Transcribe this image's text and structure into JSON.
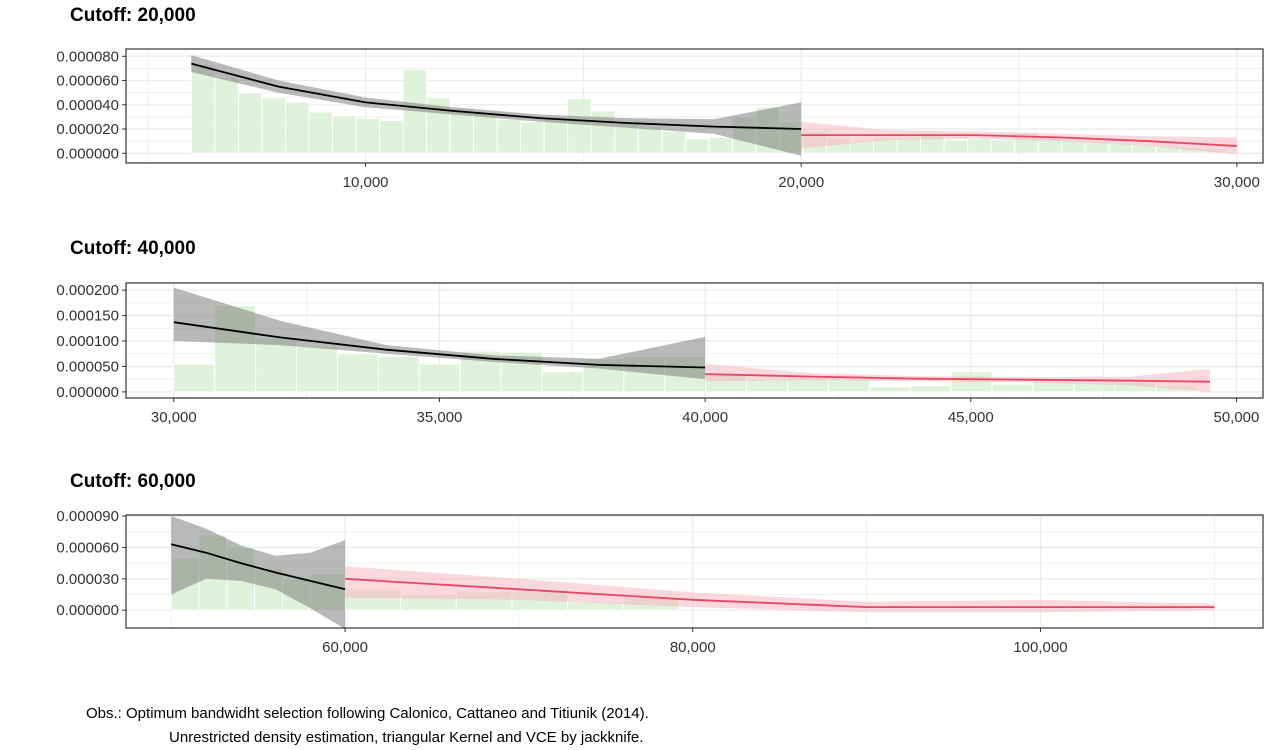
{
  "colors": {
    "hist_fill": "#d9f0d3",
    "left_line": "#000000",
    "left_ci": "#7f7f7f",
    "right_line": "#e8475f",
    "right_ci": "#f7b6c2",
    "grid": "#ebebeb",
    "border": "#333333"
  },
  "notes": {
    "line1": "Obs.: Optimum bandwidht selection following Calonico, Cattaneo and Titiunik (2014).",
    "line2": "Unrestricted density estimation, triangular Kernel and VCE by jackknife."
  },
  "chart_data": [
    {
      "type": "area",
      "title": "Cutoff: 20,000",
      "xlim": [
        4500,
        30600
      ],
      "ylim": [
        -8e-06,
        8.6e-05
      ],
      "x_ticks": [
        10000,
        20000,
        30000
      ],
      "x_tick_labels": [
        "10,000",
        "20,000",
        "30,000"
      ],
      "y_ticks": [
        0,
        2e-05,
        4e-05,
        6e-05,
        8e-05
      ],
      "y_tick_labels": [
        "0.000000",
        "0.000020",
        "0.000040",
        "0.000060",
        "0.000080"
      ],
      "cutoff": 20000,
      "histogram": {
        "edges": [
          6000,
          6540,
          7080,
          7620,
          8160,
          8700,
          9240,
          9780,
          10320,
          10860,
          11400,
          11940,
          12480,
          13020,
          13560,
          14100,
          14640,
          15180,
          15720,
          16260,
          16800,
          17340,
          17880,
          18420,
          18960,
          19500,
          20040,
          20580,
          21120,
          21660,
          22200,
          22740,
          23280,
          23820,
          24360,
          24900,
          25440,
          25980,
          26520,
          27060,
          27600,
          28140,
          28680,
          29220,
          29760
        ],
        "values": [
          7.3e-05,
          6.3e-05,
          5e-05,
          4.6e-05,
          4.2e-05,
          3.4e-05,
          3.1e-05,
          2.9e-05,
          2.7e-05,
          6.9e-05,
          4.6e-05,
          3.7e-05,
          3.4e-05,
          2.8e-05,
          2.6e-05,
          3e-05,
          4.5e-05,
          3.5e-05,
          2.6e-05,
          2.2e-05,
          1.8e-05,
          1.2e-05,
          1.3e-05,
          3e-05,
          3.8e-05,
          2.6e-05,
          1.8e-05,
          1.3e-05,
          1e-05,
          1.3e-05,
          1.3e-05,
          1.7e-05,
          1.1e-05,
          1.2e-05,
          1.1e-05,
          1.7e-05,
          1.2e-05,
          1.1e-05,
          1e-05,
          8e-06,
          7e-06,
          6e-06,
          5e-06,
          4e-06
        ]
      },
      "left": {
        "x": [
          6000,
          8000,
          10000,
          12000,
          14000,
          16000,
          18000,
          20000
        ],
        "y": [
          7.4e-05,
          5.5e-05,
          4.2e-05,
          3.5e-05,
          2.9e-05,
          2.5e-05,
          2.2e-05,
          2e-05
        ],
        "lower": [
          6.7e-05,
          5e-05,
          3.8e-05,
          3.2e-05,
          2.6e-05,
          2.1e-05,
          1.6e-05,
          -2e-06
        ],
        "upper": [
          8.1e-05,
          6e-05,
          4.6e-05,
          3.8e-05,
          3.2e-05,
          2.9e-05,
          2.8e-05,
          4.2e-05
        ]
      },
      "right": {
        "x": [
          20000,
          22000,
          24000,
          26000,
          28000,
          30000
        ],
        "y": [
          1.5e-05,
          1.5e-05,
          1.5e-05,
          1.3e-05,
          1e-05,
          6e-06
        ],
        "lower": [
          4e-06,
          1.1e-05,
          1.2e-05,
          1e-05,
          6e-06,
          -1e-06
        ],
        "upper": [
          2.6e-05,
          1.9e-05,
          1.8e-05,
          1.6e-05,
          1.4e-05,
          1.3e-05
        ]
      }
    },
    {
      "type": "area",
      "title": "Cutoff: 40,000",
      "xlim": [
        29100,
        50500
      ],
      "ylim": [
        -1.2e-05,
        0.000214
      ],
      "x_ticks": [
        30000,
        35000,
        40000,
        45000,
        50000
      ],
      "x_tick_labels": [
        "30,000",
        "35,000",
        "40,000",
        "45,000",
        "50,000"
      ],
      "y_ticks": [
        0,
        5e-05,
        0.0001,
        0.00015,
        0.0002
      ],
      "y_tick_labels": [
        "0.000000",
        "0.000050",
        "0.000100",
        "0.000150",
        "0.000200"
      ],
      "cutoff": 40000,
      "histogram": {
        "edges": [
          30000,
          30770,
          31540,
          32310,
          33080,
          33850,
          34620,
          35390,
          36160,
          36930,
          37700,
          38470,
          39240,
          40010,
          40780,
          41550,
          42320,
          43090,
          43860,
          44630,
          45400,
          46170,
          46940,
          47710,
          48480,
          49250
        ],
        "values": [
          5.5e-05,
          0.00017,
          0.000105,
          9e-05,
          7.5e-05,
          7e-05,
          5.5e-05,
          8e-05,
          7.8e-05,
          4e-05,
          6.5e-05,
          7e-05,
          7e-05,
          3.5e-05,
          2.5e-05,
          2.8e-05,
          2.5e-05,
          1e-05,
          1.2e-05,
          4e-05,
          1.5e-05,
          2e-05,
          1.8e-05,
          1.8e-05,
          1.2e-05
        ]
      },
      "left": {
        "x": [
          30000,
          32000,
          34000,
          36000,
          38000,
          40000
        ],
        "y": [
          0.000137,
          0.000107,
          8.3e-05,
          6.5e-05,
          5.3e-05,
          4.8e-05
        ],
        "lower": [
          0.0001,
          9.2e-05,
          7.5e-05,
          5.9e-05,
          4.6e-05,
          2.5e-05
        ],
        "upper": [
          0.000205,
          0.00014,
          9.2e-05,
          7.2e-05,
          6.5e-05,
          0.000108
        ]
      },
      "right": {
        "x": [
          40000,
          42000,
          44000,
          46000,
          48000,
          49500
        ],
        "y": [
          3.5e-05,
          3e-05,
          2.6e-05,
          2.4e-05,
          2.2e-05,
          2e-05
        ],
        "lower": [
          2.1e-05,
          2.3e-05,
          2.1e-05,
          1.9e-05,
          1.3e-05,
          0.0
        ],
        "upper": [
          5.5e-05,
          3.7e-05,
          3.1e-05,
          2.9e-05,
          3e-05,
          4.5e-05
        ]
      }
    },
    {
      "type": "area",
      "title": "Cutoff: 60,000",
      "xlim": [
        47400,
        112800
      ],
      "ylim": [
        -1.7e-05,
        9.1e-05
      ],
      "x_ticks": [
        60000,
        80000,
        100000
      ],
      "x_tick_labels": [
        "60,000",
        "80,000",
        "100,000"
      ],
      "y_ticks": [
        0,
        3e-05,
        6e-05,
        9e-05
      ],
      "y_tick_labels": [
        "0.000000",
        "0.000030",
        "0.000060",
        "0.000090"
      ],
      "cutoff": 60000,
      "histogram": {
        "edges": [
          50000,
          51600,
          53200,
          54800,
          56400,
          58000,
          60000,
          63200,
          66400,
          69600,
          72800,
          76000,
          79200
        ],
        "values": [
          5e-05,
          7.2e-05,
          6e-05,
          4e-05,
          3e-05,
          3.5e-05,
          2e-05,
          1.5e-05,
          1.8e-05,
          1.8e-05,
          8e-06,
          1.2e-05
        ]
      },
      "left": {
        "x": [
          50000,
          52000,
          54000,
          56000,
          58000,
          60000
        ],
        "y": [
          6.3e-05,
          5.5e-05,
          4.5e-05,
          3.6e-05,
          2.8e-05,
          2e-05
        ],
        "lower": [
          1.5e-05,
          3e-05,
          2.8e-05,
          2e-05,
          2e-06,
          -1.8e-05
        ],
        "upper": [
          9e-05,
          7.8e-05,
          6.2e-05,
          5.2e-05,
          5.5e-05,
          6.7e-05
        ]
      },
      "right": {
        "x": [
          60000,
          70000,
          80000,
          90000,
          100000,
          110000
        ],
        "y": [
          3e-05,
          2e-05,
          1e-05,
          3e-06,
          3e-06,
          3e-06
        ],
        "lower": [
          1.2e-05,
          1e-05,
          3e-06,
          -2e-06,
          -2e-06,
          0.0
        ],
        "upper": [
          4.2e-05,
          3e-05,
          1.7e-05,
          8e-06,
          1e-05,
          6e-06
        ]
      }
    }
  ]
}
